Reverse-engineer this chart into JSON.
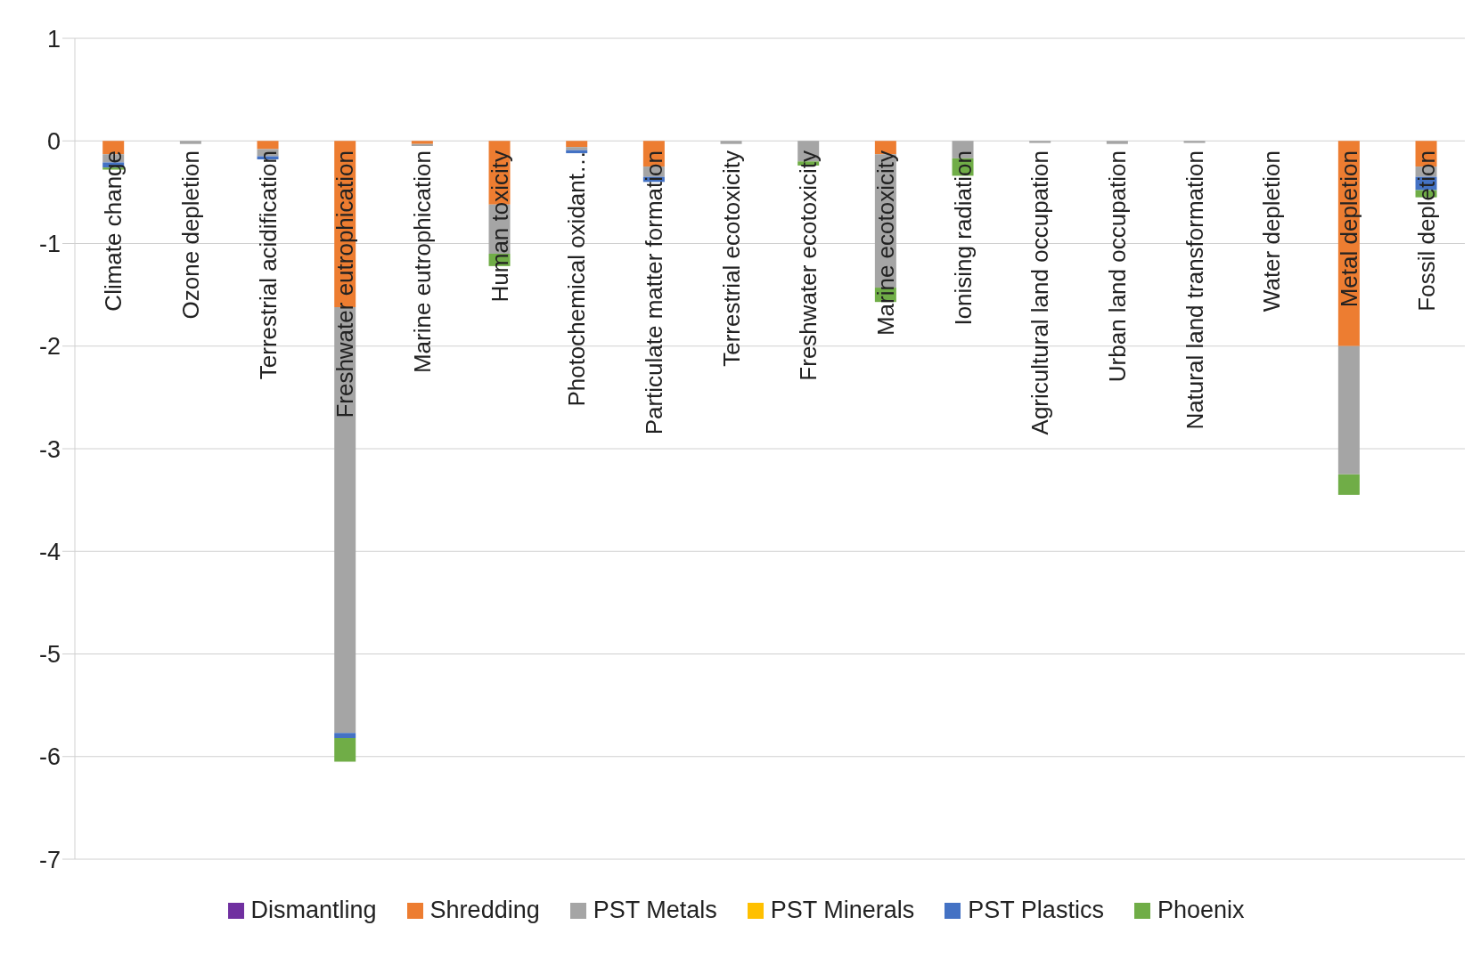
{
  "chart_data": {
    "type": "bar",
    "stacked": true,
    "grid": "y",
    "legend": "bottom",
    "ylim": [
      -7,
      1
    ],
    "yticks": [
      -7,
      -6,
      -5,
      -4,
      -3,
      -2,
      -1,
      0,
      1
    ],
    "categories": [
      "Climate change",
      "Ozone depletion",
      "Terrestrial acidification",
      "Freshwater eutrophication",
      "Marine eutrophication",
      "Human toxicity",
      "Photochemical oxidant…",
      "Particulate matter formation",
      "Terrestrial ecotoxicity",
      "Freshwater ecotoxicity",
      "Marine ecotoxicity",
      "Ionising radiation",
      "Agricultural land occupation",
      "Urban land occupation",
      "Natural land transformation",
      "Water depletion",
      "Metal depletion",
      "Fossil depletion"
    ],
    "series": [
      {
        "name": "Dismantling",
        "color": "#7030a0",
        "values": [
          null,
          null,
          null,
          null,
          null,
          null,
          null,
          null,
          null,
          null,
          null,
          null,
          null,
          null,
          null,
          null,
          null,
          null
        ]
      },
      {
        "name": "Shredding",
        "color": "#ed7d31",
        "values": [
          -0.13,
          null,
          -0.08,
          -1.62,
          -0.03,
          -0.62,
          -0.06,
          -0.25,
          null,
          null,
          -0.13,
          null,
          null,
          null,
          null,
          null,
          -2.0,
          -0.25
        ]
      },
      {
        "name": "PST Metals",
        "color": "#a5a5a5",
        "values": [
          -0.08,
          -0.03,
          -0.07,
          -4.15,
          -0.02,
          -0.48,
          -0.03,
          -0.1,
          -0.03,
          -0.2,
          -1.3,
          -0.17,
          -0.02,
          -0.03,
          -0.02,
          null,
          -1.25,
          -0.1
        ]
      },
      {
        "name": "PST Minerals",
        "color": "#ffc000",
        "values": [
          null,
          null,
          null,
          null,
          null,
          null,
          null,
          null,
          null,
          null,
          null,
          null,
          null,
          null,
          null,
          null,
          null,
          null
        ]
      },
      {
        "name": "PST Plastics",
        "color": "#4472c4",
        "values": [
          -0.05,
          null,
          -0.03,
          -0.05,
          null,
          null,
          -0.03,
          -0.05,
          null,
          null,
          null,
          null,
          null,
          null,
          null,
          null,
          null,
          -0.13
        ]
      },
      {
        "name": "Phoenix",
        "color": "#70ad47",
        "values": [
          -0.02,
          null,
          null,
          -0.23,
          null,
          -0.12,
          null,
          null,
          null,
          -0.04,
          -0.14,
          -0.17,
          null,
          null,
          null,
          null,
          -0.2,
          -0.07
        ]
      }
    ]
  }
}
